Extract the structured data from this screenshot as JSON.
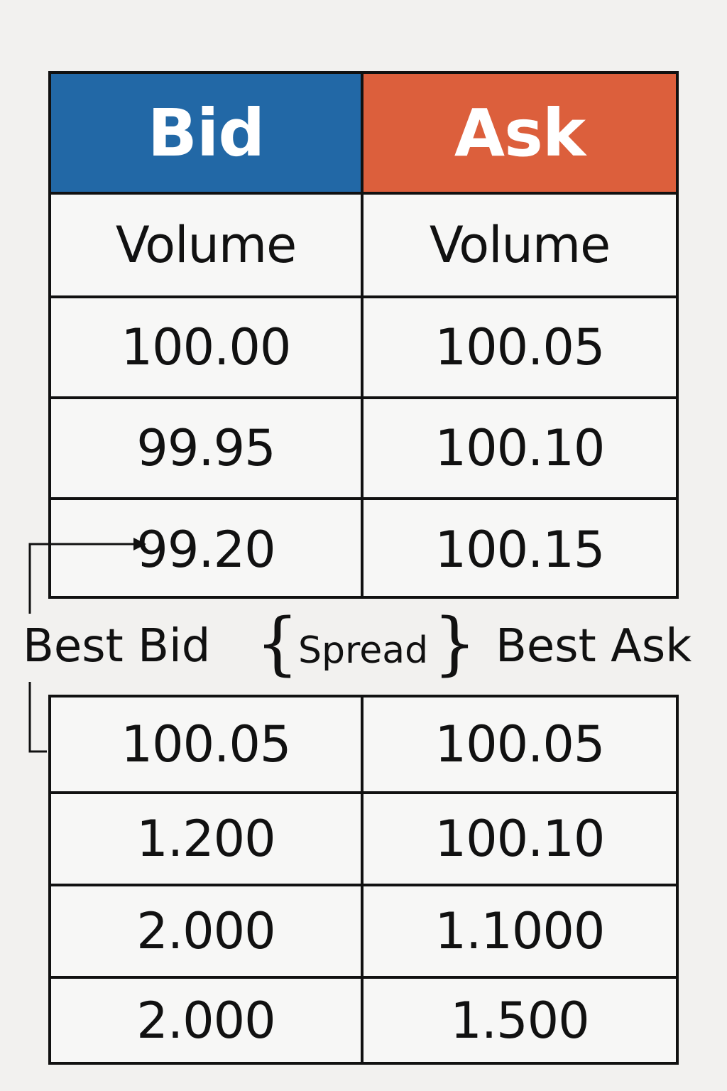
{
  "header": {
    "bid_title": "Bid",
    "ask_title": "Ask"
  },
  "top_table": {
    "label_row": {
      "bid": "Volume",
      "ask": "Volume"
    },
    "rows": [
      {
        "bid": "100.00",
        "ask": "100.05"
      },
      {
        "bid": "99.95",
        "ask": "100.10"
      },
      {
        "bid": "99.20",
        "ask": "100.15"
      }
    ]
  },
  "annotations": {
    "best_bid": "Best Bid",
    "spread": "Spread",
    "best_ask": "Best Ask"
  },
  "bottom_table": {
    "rows": [
      {
        "bid": "100.05",
        "ask": "100.05"
      },
      {
        "bid": "1.200",
        "ask": "100.10"
      },
      {
        "bid": "2.000",
        "ask": "1.1000"
      },
      {
        "bid": "2.000",
        "ask": "1.500"
      }
    ]
  },
  "colors": {
    "bid_header": "#2268a6",
    "ask_header": "#dc5f3c",
    "line": "#111111",
    "background": "#f2f1ef"
  }
}
